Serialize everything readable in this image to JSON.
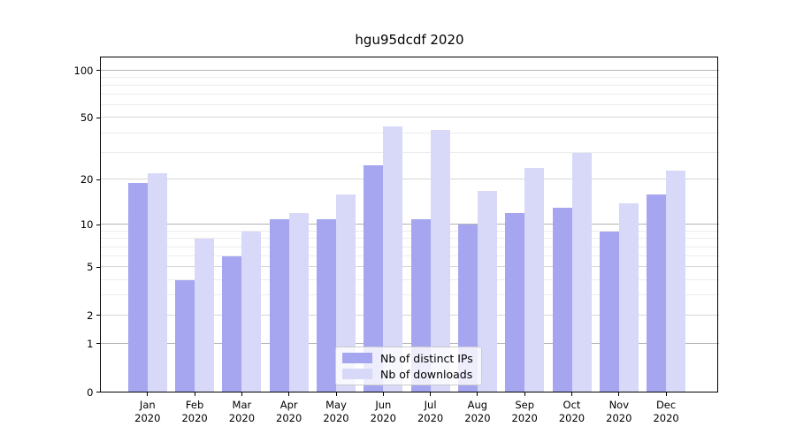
{
  "chart_data": {
    "type": "bar",
    "title": "hgu95dcdf 2020",
    "categories": [
      "Jan 2020",
      "Feb 2020",
      "Mar 2020",
      "Apr 2020",
      "May 2020",
      "Jun 2020",
      "Jul 2020",
      "Aug 2020",
      "Sep 2020",
      "Oct 2020",
      "Nov 2020",
      "Dec 2020"
    ],
    "series": [
      {
        "name": "Nb of distinct IPs",
        "color": "#a5a5f0",
        "values": [
          19,
          4,
          6,
          11,
          11,
          25,
          11,
          10,
          12,
          13,
          9,
          16
        ]
      },
      {
        "name": "Nb of downloads",
        "color": "#d8d8f8",
        "values": [
          22,
          8,
          9,
          12,
          16,
          44,
          42,
          17,
          24,
          30,
          14,
          23
        ]
      }
    ],
    "yscale": "log1p",
    "ylim": [
      0,
      122
    ],
    "yticks": [
      0,
      1,
      2,
      5,
      10,
      20,
      50,
      100
    ],
    "yticks_minor": [
      3,
      4,
      6,
      7,
      8,
      9,
      30,
      40,
      60,
      70,
      80,
      90
    ],
    "grid": true,
    "legend_position": "lower center",
    "colors": {
      "grid_decade": "#b3b3b3",
      "grid_labeled": "#d7d7d7",
      "grid_minor": "#ececec",
      "spine": "#000000",
      "background": "#ffffff"
    }
  }
}
